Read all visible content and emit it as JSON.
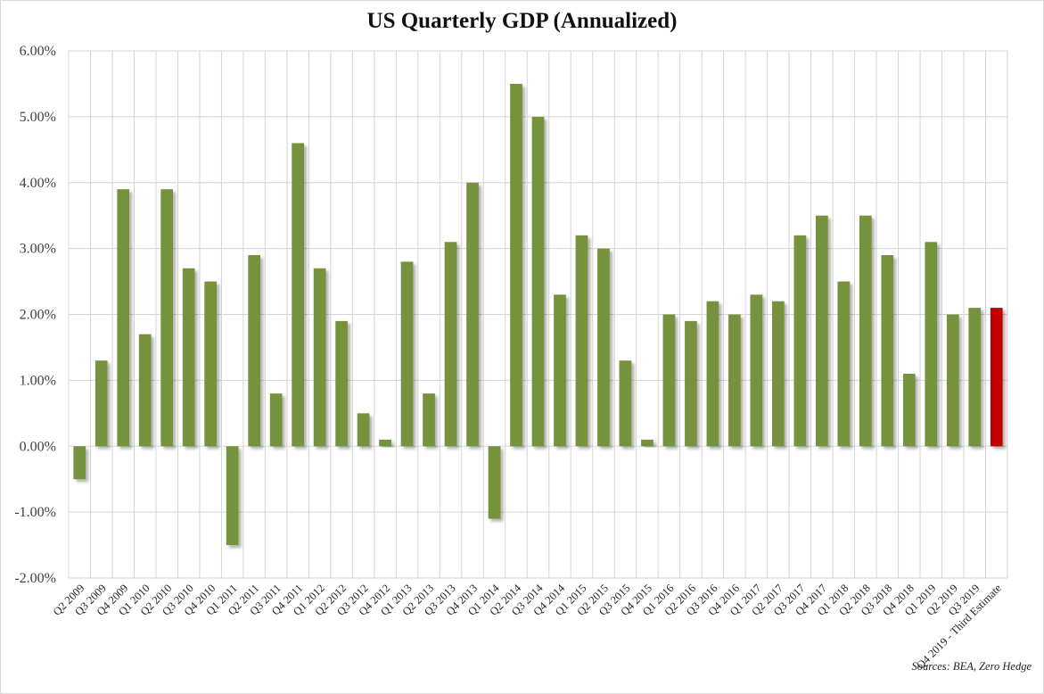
{
  "chart_data": {
    "type": "bar",
    "title": "US Quarterly GDP (Annualized)",
    "xlabel": "",
    "ylabel": "",
    "ylim": [
      -2,
      6
    ],
    "yticks": [
      "-2.00%",
      "-1.00%",
      "0.00%",
      "1.00%",
      "2.00%",
      "3.00%",
      "4.00%",
      "5.00%",
      "6.00%"
    ],
    "grid": true,
    "legend": "none",
    "colors": {
      "default": "#76923c",
      "highlight": "#c00000"
    },
    "categories": [
      "Q2 2009",
      "Q3 2009",
      "Q4 2009",
      "Q1 2010",
      "Q2 2010",
      "Q3 2010",
      "Q4 2010",
      "Q1 2011",
      "Q2 2011",
      "Q3 2011",
      "Q4 2011",
      "Q1 2012",
      "Q2 2012",
      "Q3 2012",
      "Q4 2012",
      "Q1 2013",
      "Q2 2013",
      "Q3 2013",
      "Q4 2013",
      "Q1 2014",
      "Q2 2014",
      "Q3 2014",
      "Q4 2014",
      "Q1 2015",
      "Q2 2015",
      "Q3 2015",
      "Q4 2015",
      "Q1 2016",
      "Q2 2016",
      "Q3 2016",
      "Q4 2016",
      "Q1 2017",
      "Q2 2017",
      "Q3 2017",
      "Q4 2017",
      "Q1 2018",
      "Q2 2018",
      "Q3 2018",
      "Q4 2018",
      "Q1 2019",
      "Q2 2019",
      "Q3 2019",
      "Q4 2019 - Third Estimate"
    ],
    "values": [
      -0.5,
      1.3,
      3.9,
      1.7,
      3.9,
      2.7,
      2.5,
      -1.5,
      2.9,
      0.8,
      4.6,
      2.7,
      1.9,
      0.5,
      0.1,
      2.8,
      0.8,
      3.1,
      4.0,
      -1.1,
      5.5,
      5.0,
      2.3,
      3.2,
      3.0,
      1.3,
      0.1,
      2.0,
      1.9,
      2.2,
      2.0,
      2.3,
      2.2,
      3.2,
      3.5,
      2.5,
      3.5,
      2.9,
      1.1,
      3.1,
      2.0,
      2.1,
      2.1
    ],
    "highlight_index": 42,
    "source": "Sources: BEA, Zero Hedge"
  }
}
